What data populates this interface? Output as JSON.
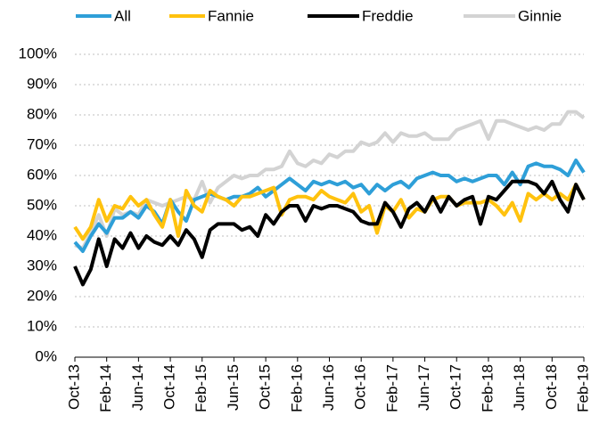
{
  "chart_data": {
    "type": "line",
    "categories": [
      "Oct-13",
      null,
      null,
      null,
      "Feb-14",
      null,
      null,
      null,
      "Jun-14",
      null,
      null,
      null,
      "Oct-14",
      null,
      null,
      null,
      "Feb-15",
      null,
      null,
      null,
      "Jun-15",
      null,
      null,
      null,
      "Oct-15",
      null,
      null,
      null,
      "Feb-16",
      null,
      null,
      null,
      "Jun-16",
      null,
      null,
      null,
      "Oct-16",
      null,
      null,
      null,
      "Feb-17",
      null,
      null,
      null,
      "Jun-17",
      null,
      null,
      null,
      "Oct-17",
      null,
      null,
      null,
      "Feb-18",
      null,
      null,
      null,
      "Jun-18",
      null,
      null,
      null,
      "Oct-18",
      null,
      null,
      null,
      "Feb-19"
    ],
    "series": [
      {
        "name": "All",
        "color": "#2e9fd8",
        "values": [
          38,
          35,
          40,
          44,
          41,
          46,
          46,
          48,
          46,
          50,
          48,
          44,
          52,
          48,
          45,
          52,
          53,
          54,
          53,
          52,
          53,
          53,
          54,
          56,
          53,
          55,
          57,
          59,
          57,
          55,
          58,
          57,
          58,
          57,
          58,
          56,
          57,
          54,
          57,
          55,
          57,
          58,
          56,
          59,
          60,
          61,
          60,
          60,
          58,
          59,
          58,
          59,
          60,
          60,
          57,
          61,
          57,
          63,
          64,
          63,
          63,
          62,
          60,
          65,
          61
        ]
      },
      {
        "name": "Fannie",
        "color": "#ffc20e",
        "values": [
          43,
          39,
          43,
          52,
          45,
          50,
          49,
          53,
          50,
          52,
          47,
          43,
          52,
          40,
          55,
          50,
          48,
          55,
          53,
          52,
          50,
          53,
          53,
          54,
          55,
          56,
          47,
          52,
          53,
          53,
          52,
          55,
          53,
          52,
          51,
          54,
          48,
          50,
          41,
          50,
          48,
          52,
          46,
          49,
          48,
          52,
          53,
          53,
          50,
          51,
          51,
          51,
          52,
          50,
          47,
          51,
          45,
          54,
          52,
          54,
          52,
          54,
          52,
          57,
          52
        ]
      },
      {
        "name": "Freddie",
        "color": "#000000",
        "values": [
          30,
          24,
          29,
          39,
          30,
          39,
          36,
          41,
          36,
          40,
          38,
          37,
          40,
          37,
          42,
          39,
          33,
          42,
          44,
          44,
          44,
          42,
          43,
          40,
          47,
          44,
          48,
          50,
          50,
          45,
          50,
          49,
          50,
          50,
          49,
          48,
          45,
          44,
          44,
          51,
          48,
          43,
          49,
          51,
          48,
          53,
          48,
          53,
          50,
          52,
          53,
          44,
          53,
          52,
          55,
          58,
          58,
          58,
          57,
          54,
          58,
          52,
          48,
          57,
          52
        ]
      },
      {
        "name": "Ginnie",
        "color": "#d3d3d3",
        "values": [
          37,
          36,
          41,
          47,
          40,
          49,
          47,
          48,
          47,
          52,
          51,
          50,
          51,
          52,
          53,
          52,
          58,
          51,
          56,
          58,
          60,
          59,
          60,
          60,
          62,
          62,
          63,
          68,
          64,
          63,
          65,
          64,
          67,
          66,
          68,
          68,
          71,
          70,
          71,
          74,
          71,
          74,
          73,
          73,
          74,
          72,
          72,
          72,
          75,
          76,
          77,
          78,
          72,
          78,
          78,
          77,
          76,
          75,
          76,
          75,
          77,
          77,
          81,
          81,
          79
        ]
      }
    ],
    "ylim": [
      0,
      100
    ],
    "yticks": [
      {
        "value": 0,
        "label": "0%"
      },
      {
        "value": 10,
        "label": "10%"
      },
      {
        "value": 20,
        "label": "20%"
      },
      {
        "value": 30,
        "label": "30%"
      },
      {
        "value": 40,
        "label": "40%"
      },
      {
        "value": 50,
        "label": "50%"
      },
      {
        "value": 60,
        "label": "60%"
      },
      {
        "value": 70,
        "label": "70%"
      },
      {
        "value": 80,
        "label": "80%"
      },
      {
        "value": 90,
        "label": "90%"
      },
      {
        "value": 100,
        "label": "100%"
      }
    ],
    "grid": true,
    "legend": "top"
  }
}
